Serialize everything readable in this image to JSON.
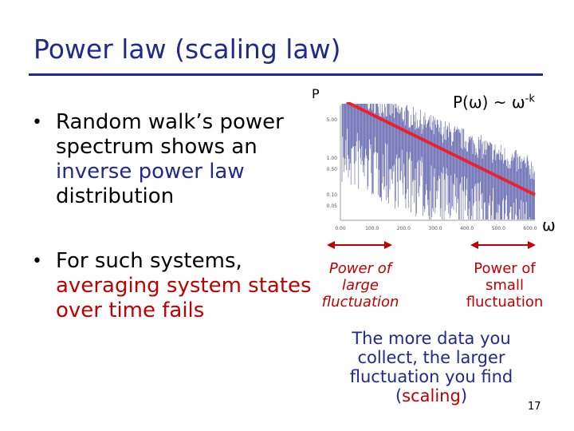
{
  "slide": {
    "title": "Power law (scaling law)",
    "page_number": "17"
  },
  "bullets": [
    {
      "pre": "Random walk’s power spectrum shows an ",
      "highlight": "inverse power law",
      "post": " distribution"
    },
    {
      "pre": "For such systems, ",
      "highlight": "averaging system states over time fails",
      "post": ""
    }
  ],
  "plot": {
    "y_label": "P",
    "x_label": "ω",
    "formula_base": "P(ω) ~ ω",
    "formula_exp": "-k",
    "x_ticks": [
      "0.00",
      "100.0",
      "200.0",
      "300.0",
      "400.0",
      "500.0",
      "600.0"
    ],
    "y_ticks": [
      "5.00",
      "1.00",
      "0.50",
      "0.10",
      "0.05"
    ],
    "colors": {
      "spectrum": "#3a3f9a",
      "fit_line": "#e8222e",
      "arrow": "#c00000"
    }
  },
  "chart_data": {
    "type": "line",
    "x": [
      0,
      100,
      200,
      300,
      400,
      500,
      600
    ],
    "x_ticks": [
      "0.00",
      "100.0",
      "200.0",
      "300.0",
      "400.0",
      "500.0",
      "600.0"
    ],
    "y_ticks": [
      "5.00",
      "1.00",
      "0.50",
      "0.10",
      "0.05"
    ],
    "ylabel": "P",
    "xlabel": "ω",
    "annotation": "P(ω) ~ ω-k",
    "fit_line": true
  },
  "annotations": {
    "large_fluct": "Power of large fluctuation",
    "small_fluct": "Power of small fluctuation",
    "note_pre": "The more data you collect, the larger fluctuation you find (",
    "note_highlight": "scaling",
    "note_post": ")"
  }
}
